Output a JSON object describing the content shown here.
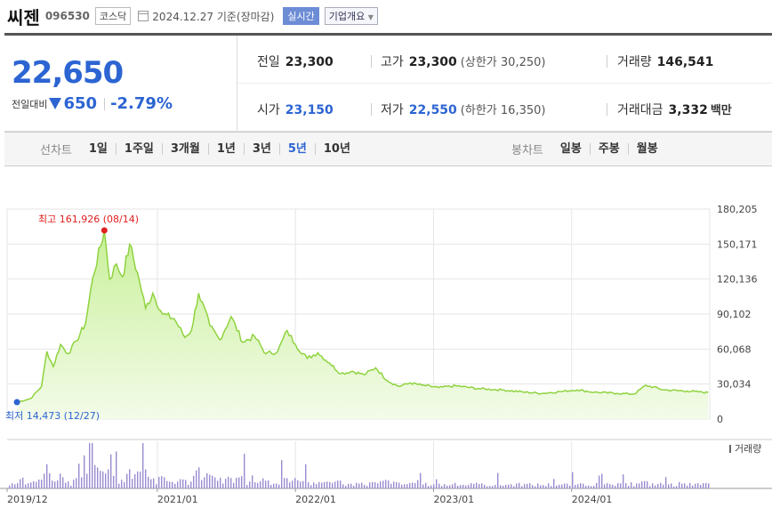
{
  "header": {
    "name": "씨젠",
    "code": "096530",
    "market": "코스닥",
    "date": "2024.12.27",
    "date_suffix": "기준(장마감)",
    "realtime_label": "실시간",
    "overview_label": "기업개요"
  },
  "quote": {
    "price": "22,650",
    "change_label": "전일대비",
    "change": "650",
    "change_pct": "-2.79%",
    "prev_close_label": "전일",
    "prev_close": "23,300",
    "high_label": "고가",
    "high": "23,300",
    "upper_limit_label": "상한가",
    "upper_limit": "30,250",
    "volume_label": "거래량",
    "volume": "146,541",
    "open_label": "시가",
    "open": "23,150",
    "low_label": "저가",
    "low": "22,550",
    "lower_limit_label": "하한가",
    "lower_limit": "16,350",
    "amount_label": "거래대금",
    "amount": "3,332",
    "amount_unit": "백만"
  },
  "line_tabs": {
    "label": "선차트",
    "items": [
      "1일",
      "1주일",
      "3개월",
      "1년",
      "3년",
      "5년",
      "10년"
    ],
    "active": "5년"
  },
  "candle_tabs": {
    "label": "봉차트",
    "items": [
      "일봉",
      "주봉",
      "월봉"
    ]
  },
  "chart_data": {
    "type": "area",
    "period": "5년",
    "x_ticks": [
      "2019/12",
      "2021/01",
      "2022/01",
      "2023/01",
      "2024/01"
    ],
    "y_ticks": [
      "180,205",
      "150,171",
      "120,136",
      "90,102",
      "60,068",
      "30,034",
      "0"
    ],
    "ylim": [
      0,
      180205
    ],
    "grid": true,
    "high": {
      "label": "최고",
      "value": 161926,
      "value_text": "161,926",
      "date": "08/14"
    },
    "low": {
      "label": "최저",
      "value": 14473,
      "value_text": "14,473",
      "date": "12/27"
    },
    "volume_label": "거래량",
    "colors": {
      "line": "#8fd33f",
      "fill_top": "#c9f09a",
      "fill_bottom": "#f3fbe9",
      "volume": "#9b8ad0",
      "high": "#e02020",
      "low": "#2c64d2"
    },
    "series": [
      {
        "date": "2019-12-27",
        "value": 14473
      },
      {
        "date": "2020-02-01",
        "value": 17500
      },
      {
        "date": "2020-03-01",
        "value": 28000
      },
      {
        "date": "2020-03-15",
        "value": 58000
      },
      {
        "date": "2020-04-01",
        "value": 45000
      },
      {
        "date": "2020-04-20",
        "value": 64000
      },
      {
        "date": "2020-05-10",
        "value": 56000
      },
      {
        "date": "2020-06-01",
        "value": 67000
      },
      {
        "date": "2020-06-25",
        "value": 82000
      },
      {
        "date": "2020-07-15",
        "value": 122000
      },
      {
        "date": "2020-08-14",
        "value": 161926
      },
      {
        "date": "2020-08-28",
        "value": 120000
      },
      {
        "date": "2020-09-15",
        "value": 133000
      },
      {
        "date": "2020-10-01",
        "value": 122000
      },
      {
        "date": "2020-10-20",
        "value": 150000
      },
      {
        "date": "2020-11-15",
        "value": 118000
      },
      {
        "date": "2020-12-01",
        "value": 95000
      },
      {
        "date": "2020-12-20",
        "value": 108000
      },
      {
        "date": "2021-01-15",
        "value": 90000
      },
      {
        "date": "2021-02-15",
        "value": 86000
      },
      {
        "date": "2021-03-15",
        "value": 70000
      },
      {
        "date": "2021-04-01",
        "value": 76000
      },
      {
        "date": "2021-04-20",
        "value": 108000
      },
      {
        "date": "2021-05-20",
        "value": 80000
      },
      {
        "date": "2021-06-15",
        "value": 68000
      },
      {
        "date": "2021-07-15",
        "value": 88000
      },
      {
        "date": "2021-08-15",
        "value": 66000
      },
      {
        "date": "2021-09-15",
        "value": 71000
      },
      {
        "date": "2021-10-15",
        "value": 56000
      },
      {
        "date": "2021-11-15",
        "value": 58000
      },
      {
        "date": "2021-12-10",
        "value": 76000
      },
      {
        "date": "2022-01-01",
        "value": 64000
      },
      {
        "date": "2022-02-01",
        "value": 52000
      },
      {
        "date": "2022-03-01",
        "value": 57000
      },
      {
        "date": "2022-04-01",
        "value": 48000
      },
      {
        "date": "2022-05-01",
        "value": 39000
      },
      {
        "date": "2022-06-01",
        "value": 41000
      },
      {
        "date": "2022-07-01",
        "value": 38000
      },
      {
        "date": "2022-08-01",
        "value": 44000
      },
      {
        "date": "2022-09-01",
        "value": 33000
      },
      {
        "date": "2022-10-01",
        "value": 28000
      },
      {
        "date": "2022-11-01",
        "value": 31000
      },
      {
        "date": "2022-12-01",
        "value": 29000
      },
      {
        "date": "2023-01-15",
        "value": 27000
      },
      {
        "date": "2023-03-01",
        "value": 28500
      },
      {
        "date": "2023-05-01",
        "value": 26000
      },
      {
        "date": "2023-07-01",
        "value": 25000
      },
      {
        "date": "2023-09-01",
        "value": 23000
      },
      {
        "date": "2023-10-15",
        "value": 22000
      },
      {
        "date": "2023-12-01",
        "value": 23500
      },
      {
        "date": "2024-01-15",
        "value": 25000
      },
      {
        "date": "2024-03-01",
        "value": 23000
      },
      {
        "date": "2024-05-01",
        "value": 22000
      },
      {
        "date": "2024-06-15",
        "value": 21500
      },
      {
        "date": "2024-07-15",
        "value": 29000
      },
      {
        "date": "2024-09-01",
        "value": 25000
      },
      {
        "date": "2024-11-01",
        "value": 24000
      },
      {
        "date": "2024-12-27",
        "value": 22650
      }
    ]
  }
}
